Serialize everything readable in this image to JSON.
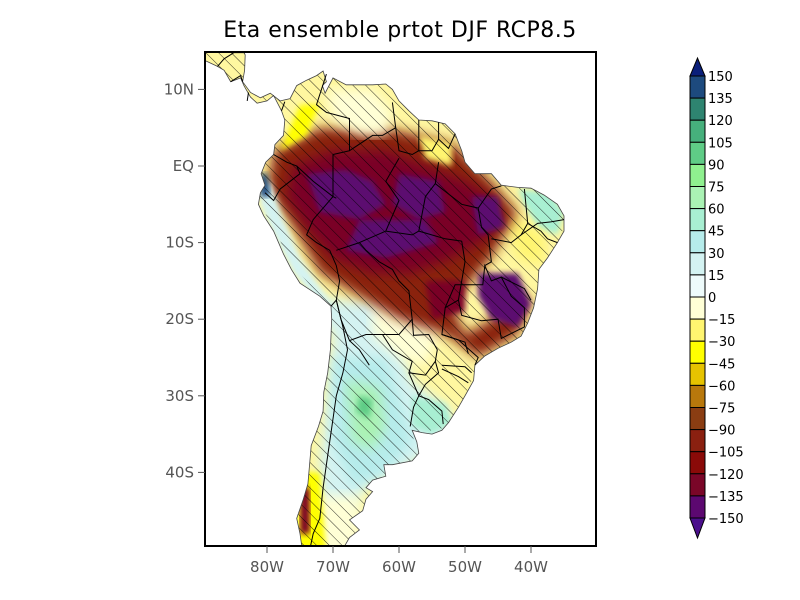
{
  "title": "Eta ensemble prtot DJF RCP8.5",
  "map": {
    "lon_range": [
      -89.5,
      -30
    ],
    "lat_range": [
      14.5,
      -50
    ],
    "lat_ticks": [
      {
        "value": 10,
        "label": "10N"
      },
      {
        "value": 0,
        "label": "EQ"
      },
      {
        "value": -10,
        "label": "10S"
      },
      {
        "value": -20,
        "label": "20S"
      },
      {
        "value": -30,
        "label": "30S"
      },
      {
        "value": -40,
        "label": "40S"
      }
    ],
    "lon_ticks": [
      {
        "value": -80,
        "label": "80W"
      },
      {
        "value": -70,
        "label": "70W"
      },
      {
        "value": -60,
        "label": "60W"
      },
      {
        "value": -50,
        "label": "50W"
      },
      {
        "value": -40,
        "label": "40W"
      }
    ],
    "hatching": "significance"
  },
  "colorbar": {
    "labels": [
      "150",
      "135",
      "120",
      "105",
      "90",
      "75",
      "60",
      "45",
      "30",
      "15",
      "0",
      "-15",
      "-30",
      "-45",
      "-60",
      "-75",
      "-90",
      "-105",
      "-120",
      "-135",
      "-150"
    ],
    "top_triangle_color": "#0a1f7a",
    "bottom_triangle_color": "#4b0f8c",
    "colors": [
      "#1d4a7e",
      "#2e8470",
      "#46b07c",
      "#5fcc86",
      "#8ff08f",
      "#aaf2b4",
      "#a8efd2",
      "#b6eceb",
      "#d4f3f2",
      "#eefbfb",
      "#ffffd6",
      "#fff570",
      "#ffff00",
      "#e6c300",
      "#b8780c",
      "#8a3d12",
      "#8a2010",
      "#8a0a08",
      "#7a0628",
      "#5c0870"
    ]
  }
}
